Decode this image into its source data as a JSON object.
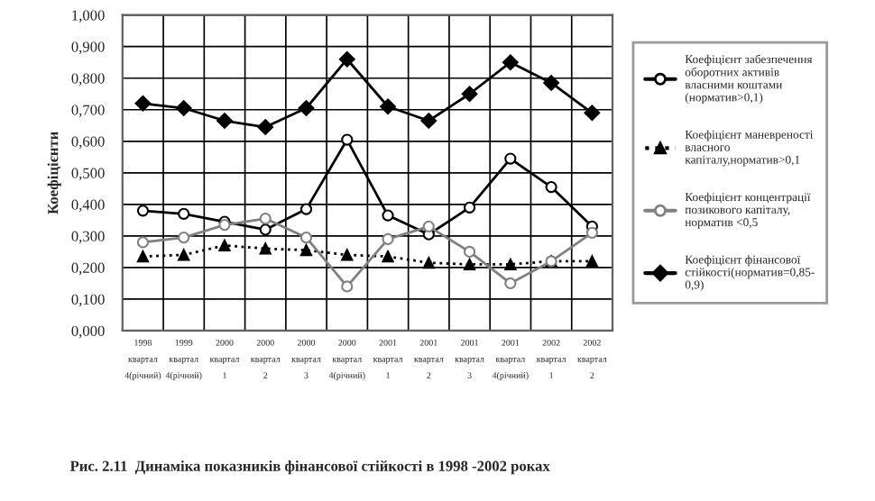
{
  "chart_data": {
    "type": "line",
    "categories": [
      "1998\nквартал\n4(річний)",
      "1999\nквартал\n4(річний)",
      "2000\nквартал\n1",
      "2000\nквартал\n2",
      "2000\nквартал\n3",
      "2000\nквартал\n4(річний)",
      "2001\nквартал\n1",
      "2001\nквартал\n2",
      "2001\nквартал\n3",
      "2001\nквартал\n4(річний)",
      "2002\nквартал\n1",
      "2002\nквартал\n2"
    ],
    "ylabel": "Коефіцієнти",
    "ylim": [
      0,
      1
    ],
    "yticks": [
      {
        "value": 0,
        "label": "0,000"
      },
      {
        "value": 0.1,
        "label": "0,100"
      },
      {
        "value": 0.2,
        "label": "0,200"
      },
      {
        "value": 0.3,
        "label": "0,300"
      },
      {
        "value": 0.4,
        "label": "0,400"
      },
      {
        "value": 0.5,
        "label": "0,500"
      },
      {
        "value": 0.6,
        "label": "0,600"
      },
      {
        "value": 0.7,
        "label": "0,700"
      },
      {
        "value": 0.8,
        "label": "0,800"
      },
      {
        "value": 0.9,
        "label": "0,900"
      },
      {
        "value": 1,
        "label": "1,000"
      }
    ],
    "grid": true,
    "legend": "right",
    "series": [
      {
        "name": "Коефіцієнт забезпечення\nоборотних активів\nвласними коштами\n(норматив>0,1)",
        "color": "#000000",
        "marker": "circle",
        "line_style": "solid",
        "values": [
          0.38,
          0.37,
          0.345,
          0.32,
          0.385,
          0.605,
          0.365,
          0.305,
          0.39,
          0.545,
          0.455,
          0.33
        ]
      },
      {
        "name": "Коефіцієнт маневреності\nвласного\nкапіталу,норматив>0,1",
        "color": "#000000",
        "marker": "triangle",
        "line_style": "dotted",
        "values": [
          0.235,
          0.24,
          0.27,
          0.26,
          0.255,
          0.24,
          0.235,
          0.215,
          0.21,
          0.21,
          0.22,
          0.22
        ]
      },
      {
        "name": "Коефіцієнт концентрації\nпозикового капіталу,\nнорматив <0,5",
        "color": "#808080",
        "marker": "circle",
        "line_style": "solid",
        "values": [
          0.28,
          0.295,
          0.335,
          0.355,
          0.295,
          0.14,
          0.29,
          0.33,
          0.25,
          0.15,
          0.22,
          0.31
        ]
      },
      {
        "name": "Коефіцієнт фінансової\nстійкості(норматив=0,85-\n0,9)",
        "color": "#000000",
        "marker": "diamond",
        "line_style": "solid",
        "values": [
          0.72,
          0.705,
          0.665,
          0.645,
          0.705,
          0.86,
          0.71,
          0.665,
          0.75,
          0.85,
          0.785,
          0.69
        ]
      }
    ],
    "annotations": [
      "Рис. 2.11  Динаміка показників фінансової стійкості в 1998 -2002 роках"
    ]
  }
}
